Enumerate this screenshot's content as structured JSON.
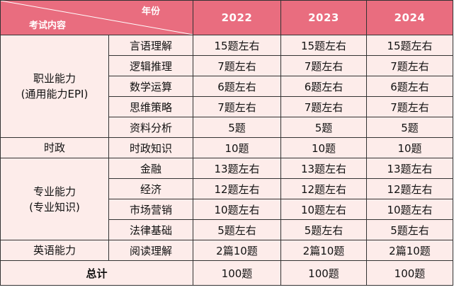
{
  "header": {
    "year_label": "年份",
    "content_label": "考试内容",
    "years": [
      "2022",
      "2023",
      "2024"
    ]
  },
  "categories": [
    {
      "line1": "职业能力",
      "line2": "(通用能力EPI)"
    },
    {
      "line1": "时政",
      "line2": ""
    },
    {
      "line1": "专业能力",
      "line2": "(专业知识)"
    },
    {
      "line1": "英语能力",
      "line2": ""
    }
  ],
  "rows": [
    {
      "sub": "言语理解",
      "values": [
        "15题左右",
        "15题左右",
        "15题左右"
      ]
    },
    {
      "sub": "逻辑推理",
      "values": [
        "7题左右",
        "7题左右",
        "7题左右"
      ]
    },
    {
      "sub": "数学运算",
      "values": [
        "6题左右",
        "6题左右",
        "6题左右"
      ]
    },
    {
      "sub": "思维策略",
      "values": [
        "7题左右",
        "7题左右",
        "7题左右"
      ]
    },
    {
      "sub": "资料分析",
      "values": [
        "5题",
        "5题",
        "5题"
      ]
    },
    {
      "sub": "时政知识",
      "values": [
        "10题",
        "10题",
        "10题"
      ]
    },
    {
      "sub": "金融",
      "values": [
        "13题左右",
        "13题左右",
        "13题左右"
      ]
    },
    {
      "sub": "经济",
      "values": [
        "12题左右",
        "12题左右",
        "12题左右"
      ]
    },
    {
      "sub": "市场营销",
      "values": [
        "10题左右",
        "10题左右",
        "10题左右"
      ]
    },
    {
      "sub": "法律基础",
      "values": [
        "5题左右",
        "5题左右",
        "5题左右"
      ]
    },
    {
      "sub": "阅读理解",
      "values": [
        "2篇10题",
        "2篇10题",
        "2篇10题"
      ]
    }
  ],
  "total": {
    "label": "总计",
    "values": [
      "100题",
      "100题",
      "100题"
    ]
  },
  "colors": {
    "header_bg": "#e96d7f",
    "body_bg": "#fdecea"
  }
}
